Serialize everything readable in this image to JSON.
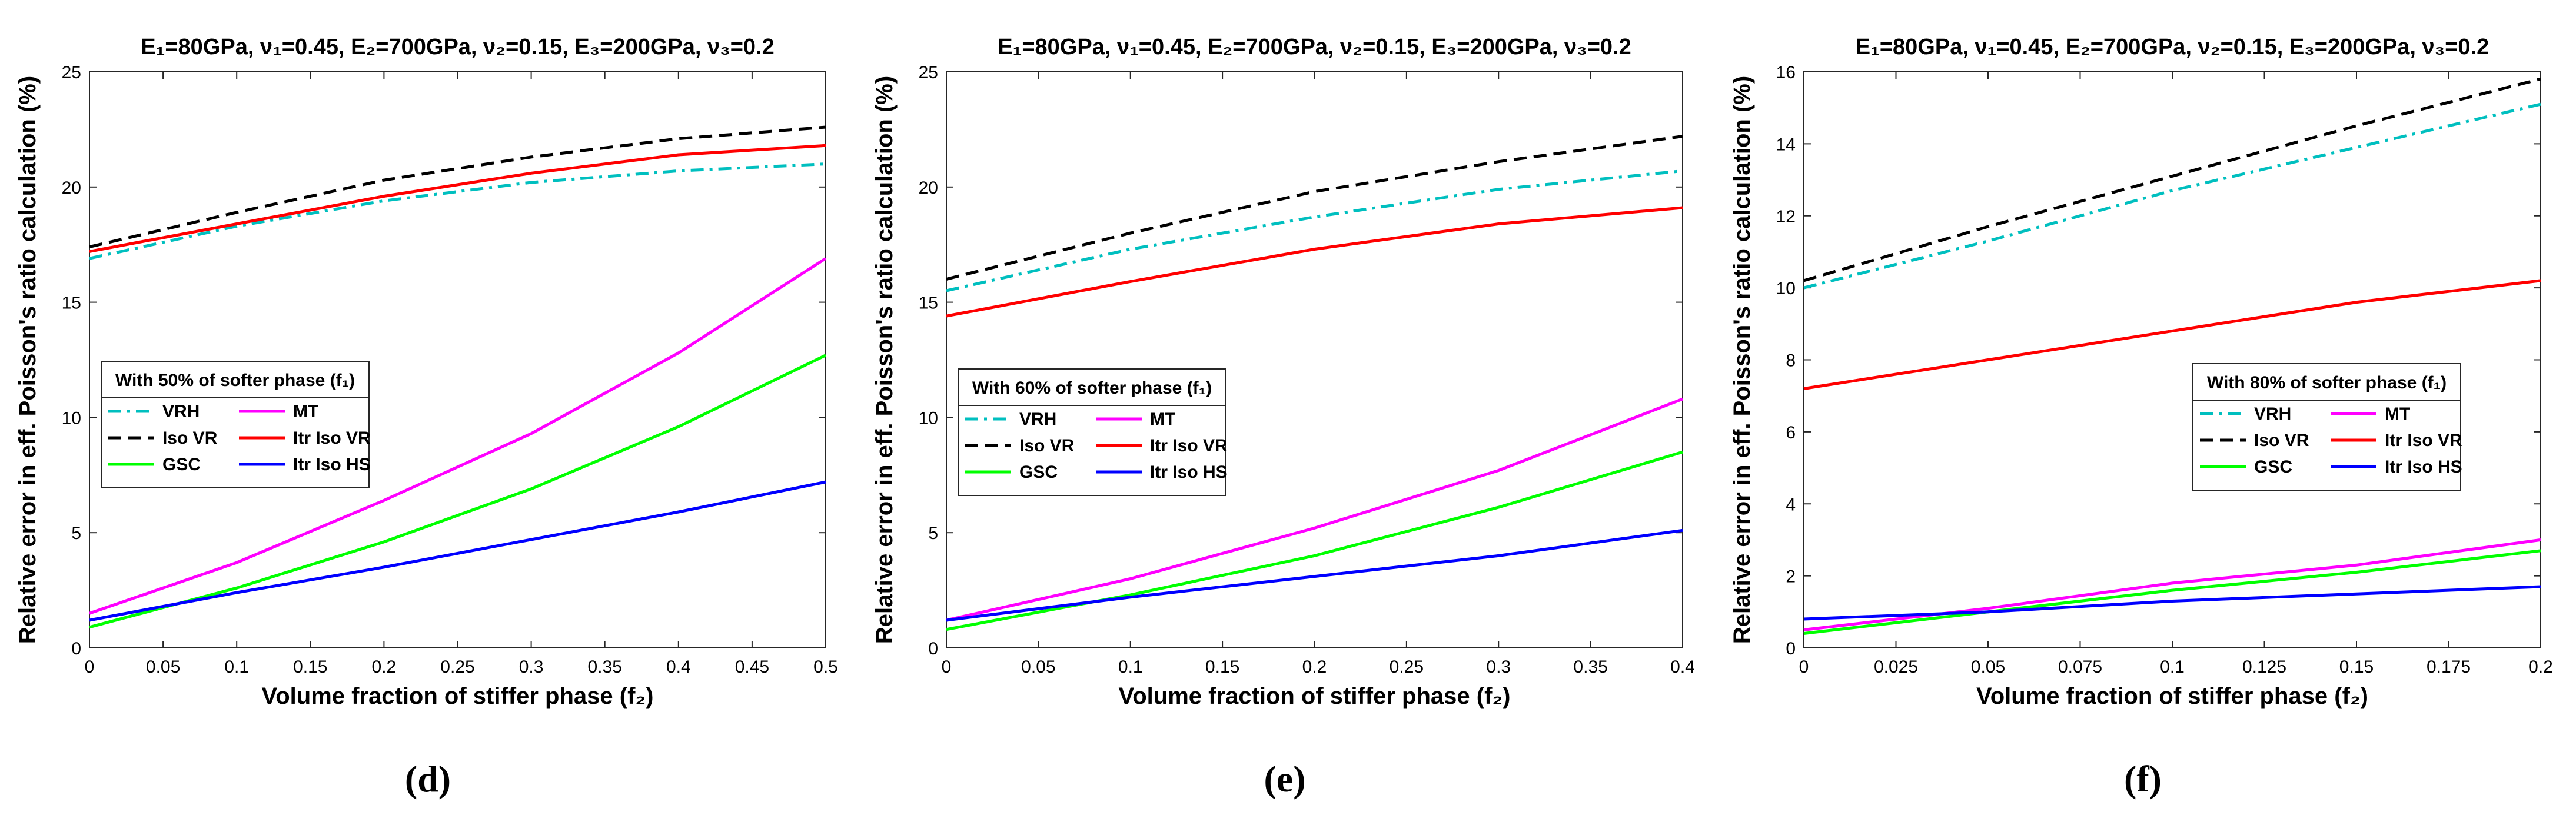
{
  "chart_data": [
    {
      "type": "line",
      "panel_label": "(d)",
      "title": "E₁=80GPa, ν₁=0.45,  E₂=700GPa, ν₂=0.15,  E₃=200GPa, ν₃=0.2",
      "xlabel": "Volume fraction of stiffer phase (f₂)",
      "ylabel": "Relative error in eff. Poisson's ratio calculation (%)",
      "xlim": [
        0,
        0.5
      ],
      "ylim": [
        0,
        25
      ],
      "xticks": [
        0,
        0.05,
        0.1,
        0.15,
        0.2,
        0.25,
        0.3,
        0.35,
        0.4,
        0.45,
        0.5
      ],
      "xtick_labels": [
        "0",
        "0.05",
        "0.1",
        "0.15",
        "0.2",
        "0.25",
        "0.3",
        "0.35",
        "0.4",
        "0.45",
        "0.5"
      ],
      "yticks": [
        0,
        5,
        10,
        15,
        20,
        25
      ],
      "ytick_labels": [
        "0",
        "5",
        "10",
        "15",
        "20",
        "25"
      ],
      "legend_title": "With 50% of softer phase (f₁)",
      "legend_position": "left-middle",
      "x": [
        0,
        0.1,
        0.2,
        0.3,
        0.4,
        0.5
      ],
      "series": [
        {
          "name": "VRH",
          "color": "#00BFBF",
          "dash": "dashdot",
          "values": [
            16.9,
            18.3,
            19.4,
            20.2,
            20.7,
            21.0
          ]
        },
        {
          "name": "Iso VR",
          "color": "#000000",
          "dash": "dashed",
          "values": [
            17.4,
            18.9,
            20.3,
            21.3,
            22.1,
            22.6
          ]
        },
        {
          "name": "GSC",
          "color": "#00FF00",
          "dash": "solid",
          "values": [
            0.9,
            2.6,
            4.6,
            6.9,
            9.6,
            12.7
          ]
        },
        {
          "name": "MT",
          "color": "#FF00FF",
          "dash": "solid",
          "values": [
            1.5,
            3.7,
            6.4,
            9.3,
            12.8,
            16.9
          ]
        },
        {
          "name": "Itr Iso VR",
          "color": "#FF0000",
          "dash": "solid",
          "values": [
            17.2,
            18.4,
            19.6,
            20.6,
            21.4,
            21.8
          ]
        },
        {
          "name": "Itr Iso HS",
          "color": "#0000FF",
          "dash": "solid",
          "values": [
            1.2,
            2.4,
            3.5,
            4.7,
            5.9,
            7.2
          ]
        }
      ]
    },
    {
      "type": "line",
      "panel_label": "(e)",
      "title": "E₁=80GPa, ν₁=0.45,  E₂=700GPa, ν₂=0.15,  E₃=200GPa, ν₃=0.2",
      "xlabel": "Volume fraction of stiffer phase (f₂)",
      "ylabel": "Relative error in eff. Poisson's ratio calculation (%)",
      "xlim": [
        0,
        0.4
      ],
      "ylim": [
        0,
        25
      ],
      "xticks": [
        0,
        0.05,
        0.1,
        0.15,
        0.2,
        0.25,
        0.3,
        0.35,
        0.4
      ],
      "xtick_labels": [
        "0",
        "0.05",
        "0.1",
        "0.15",
        "0.2",
        "0.25",
        "0.3",
        "0.35",
        "0.4"
      ],
      "yticks": [
        0,
        5,
        10,
        15,
        20,
        25
      ],
      "ytick_labels": [
        "0",
        "5",
        "10",
        "15",
        "20",
        "25"
      ],
      "legend_title": "With 60% of softer phase (f₁)",
      "legend_position": "left-middle",
      "x": [
        0,
        0.1,
        0.2,
        0.3,
        0.4
      ],
      "series": [
        {
          "name": "VRH",
          "color": "#00BFBF",
          "dash": "dashdot",
          "values": [
            15.5,
            17.3,
            18.7,
            19.9,
            20.7
          ]
        },
        {
          "name": "Iso VR",
          "color": "#000000",
          "dash": "dashed",
          "values": [
            16.0,
            18.0,
            19.8,
            21.1,
            22.2
          ]
        },
        {
          "name": "GSC",
          "color": "#00FF00",
          "dash": "solid",
          "values": [
            0.8,
            2.3,
            4.0,
            6.1,
            8.5
          ]
        },
        {
          "name": "MT",
          "color": "#FF00FF",
          "dash": "solid",
          "values": [
            1.2,
            3.0,
            5.2,
            7.7,
            10.8
          ]
        },
        {
          "name": "Itr Iso VR",
          "color": "#FF0000",
          "dash": "solid",
          "values": [
            14.4,
            15.9,
            17.3,
            18.4,
            19.1
          ]
        },
        {
          "name": "Itr Iso HS",
          "color": "#0000FF",
          "dash": "solid",
          "values": [
            1.2,
            2.2,
            3.1,
            4.0,
            5.1
          ]
        }
      ]
    },
    {
      "type": "line",
      "panel_label": "(f)",
      "title": "E₁=80GPa, ν₁=0.45,  E₂=700GPa, ν₂=0.15,  E₃=200GPa, ν₃=0.2",
      "xlabel": "Volume fraction of stiffer phase (f₂)",
      "ylabel": "Relative error in eff. Poisson's ratio calculation (%)",
      "xlim": [
        0,
        0.2
      ],
      "ylim": [
        0,
        16
      ],
      "xticks": [
        0,
        0.025,
        0.05,
        0.075,
        0.1,
        0.125,
        0.15,
        0.175,
        0.2
      ],
      "xtick_labels": [
        "0",
        "0.025",
        "0.05",
        "0.075",
        "0.1",
        "0.125",
        "0.15",
        "0.175",
        "0.2"
      ],
      "yticks": [
        0,
        2,
        4,
        6,
        8,
        10,
        12,
        14,
        16
      ],
      "ytick_labels": [
        "0",
        "2",
        "4",
        "6",
        "8",
        "10",
        "12",
        "14",
        "16"
      ],
      "legend_title": "With 80% of softer phase (f₁)",
      "legend_position": "right-middle",
      "x": [
        0,
        0.05,
        0.1,
        0.15,
        0.2
      ],
      "series": [
        {
          "name": "VRH",
          "color": "#00BFBF",
          "dash": "dashdot",
          "values": [
            10.0,
            11.3,
            12.7,
            13.9,
            15.1
          ]
        },
        {
          "name": "Iso VR",
          "color": "#000000",
          "dash": "dashed",
          "values": [
            10.2,
            11.7,
            13.1,
            14.5,
            15.8
          ]
        },
        {
          "name": "GSC",
          "color": "#00FF00",
          "dash": "solid",
          "values": [
            0.4,
            1.0,
            1.6,
            2.1,
            2.7
          ]
        },
        {
          "name": "MT",
          "color": "#FF00FF",
          "dash": "solid",
          "values": [
            0.5,
            1.1,
            1.8,
            2.3,
            3.0
          ]
        },
        {
          "name": "Itr Iso VR",
          "color": "#FF0000",
          "dash": "solid",
          "values": [
            7.2,
            8.0,
            8.8,
            9.6,
            10.2
          ]
        },
        {
          "name": "Itr Iso HS",
          "color": "#0000FF",
          "dash": "solid",
          "values": [
            0.8,
            1.0,
            1.3,
            1.5,
            1.7
          ]
        }
      ]
    }
  ]
}
